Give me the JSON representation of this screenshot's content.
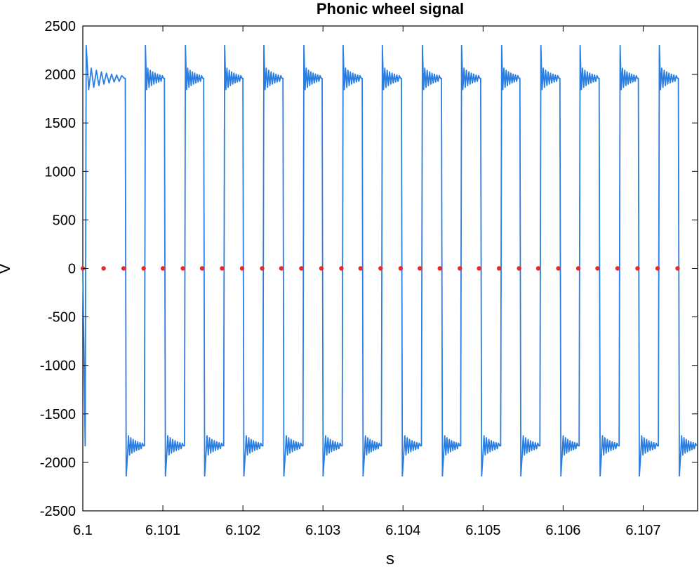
{
  "chart_data": {
    "type": "line",
    "title": "Phonic wheel signal",
    "xlabel": "s",
    "ylabel": "V",
    "xlim": [
      6.1,
      6.10768
    ],
    "ylim": [
      -2500,
      2500
    ],
    "grid": false,
    "legend": "none",
    "x_ticks": [
      6.1,
      6.101,
      6.102,
      6.103,
      6.104,
      6.105,
      6.106,
      6.107
    ],
    "x_tick_labels": [
      "6.1",
      "6.101",
      "6.102",
      "6.103",
      "6.104",
      "6.105",
      "6.106",
      "6.107"
    ],
    "y_ticks": [
      -2500,
      -2000,
      -1500,
      -1000,
      -500,
      0,
      500,
      1000,
      1500,
      2000,
      2500
    ],
    "y_tick_labels": [
      "-2500",
      "-2000",
      "-1500",
      "-1000",
      "-500",
      "0",
      "500",
      "1000",
      "1500",
      "2000",
      "2500"
    ],
    "colors": {
      "signal": "#2a7de1",
      "crossings": "#e8282b"
    },
    "series": [
      {
        "kind": "line",
        "square_wave": {
          "high_level": 1960,
          "low_level": -1830,
          "overshoot_high": 2300,
          "overshoot_low": -2140,
          "ringing_amplitude": 130
        },
        "rising_edges": [
          6.10003,
          6.10077,
          6.10127,
          6.10176,
          6.10225,
          6.10275,
          6.10324,
          6.10373,
          6.10423,
          6.10472,
          6.10522,
          6.10571,
          6.1062,
          6.1067,
          6.10719
        ],
        "falling_edges": [
          6.10053,
          6.10102,
          6.10151,
          6.102,
          6.1025,
          6.10299,
          6.10349,
          6.10398,
          6.10448,
          6.10497,
          6.10546,
          6.10596,
          6.10645,
          6.10694,
          6.10744
        ]
      },
      {
        "kind": "scatter",
        "x": [
          6.1,
          6.10026,
          6.10051,
          6.10076,
          6.101,
          6.10125,
          6.10149,
          6.10174,
          6.10199,
          6.10224,
          6.10248,
          6.10273,
          6.10298,
          6.10323,
          6.10347,
          6.10372,
          6.10397,
          6.10421,
          6.10446,
          6.10471,
          6.10495,
          6.1052,
          6.10545,
          6.10569,
          6.10594,
          6.10619,
          6.10643,
          6.10668,
          6.10693,
          6.10718,
          6.10743
        ],
        "y": [
          0,
          0,
          0,
          0,
          0,
          0,
          0,
          0,
          0,
          0,
          0,
          0,
          0,
          0,
          0,
          0,
          0,
          0,
          0,
          0,
          0,
          0,
          0,
          0,
          0,
          0,
          0,
          0,
          0,
          0,
          0
        ]
      }
    ]
  }
}
